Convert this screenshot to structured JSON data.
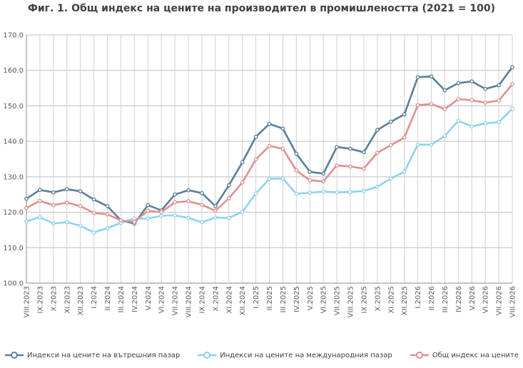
{
  "title": "Фиг. 1. Общ индекс на цените на производител в промишлеността (2021 = 100)",
  "chart_data": {
    "type": "line",
    "title": "Фиг. 1. Общ индекс на цените на производител в промишлеността (2021 = 100)",
    "xlabel": "",
    "ylabel": "",
    "ylim": [
      100,
      170
    ],
    "yticks": [
      "100.0",
      "110.0",
      "120.0",
      "130.0",
      "140.0",
      "150.0",
      "160.0",
      "170.0"
    ],
    "grid": true,
    "legend_position": "bottom",
    "categories": [
      "VIII.2023",
      "IX.2023",
      "X.2023",
      "XI.2023",
      "XII.2023",
      "I.2024",
      "II.2024",
      "III.2024",
      "IV.2024",
      "V.2024",
      "VI.2024",
      "VII.2024",
      "VIII.2024",
      "IX.2024",
      "X.2024",
      "XI.2024",
      "XII.2024",
      "I.2025",
      "II.2025",
      "III.2025",
      "IV.2025",
      "V.2025",
      "VI.2025",
      "VII.2025",
      "VIII.2025",
      "IX.2025",
      "X.2025",
      "XI.2025",
      "XII.2025",
      "I.2026",
      "II.2026",
      "III.2026",
      "IV.2026",
      "V.2026",
      "VI.2026",
      "VII.2026",
      "VIII.2026"
    ],
    "series": [
      {
        "name": "Индекси на цените на вътрешния пазар",
        "color": "#5b7f99",
        "values": [
          123.8,
          126.3,
          125.6,
          126.5,
          125.9,
          123.6,
          121.7,
          117.7,
          116.8,
          122.0,
          120.5,
          125.0,
          126.2,
          125.4,
          121.7,
          127.6,
          134.1,
          141.3,
          144.9,
          143.6,
          136.5,
          131.4,
          130.9,
          138.4,
          137.9,
          136.9,
          143.2,
          145.5,
          147.6,
          158.1,
          158.3,
          154.4,
          156.4,
          156.9,
          154.8,
          155.8,
          160.9
        ]
      },
      {
        "name": "Индекси на цените на международния пазар",
        "color": "#8fd3f0",
        "values": [
          117.4,
          118.6,
          116.8,
          117.2,
          116.2,
          114.3,
          115.5,
          117.0,
          118.2,
          118.2,
          119.0,
          119.1,
          118.4,
          117.2,
          118.5,
          118.4,
          120.1,
          125.3,
          129.4,
          129.5,
          125.2,
          125.5,
          125.8,
          125.6,
          125.7,
          126.0,
          127.2,
          129.5,
          131.4,
          139.1,
          139.0,
          141.5,
          145.8,
          144.2,
          145.1,
          145.4,
          149.2
        ]
      },
      {
        "name": "Общ индекс на цените",
        "color": "#e09090",
        "values": [
          121.2,
          123.2,
          122.0,
          122.7,
          121.7,
          119.8,
          119.4,
          117.7,
          117.3,
          120.4,
          120.0,
          122.8,
          123.1,
          122.1,
          120.4,
          123.9,
          128.4,
          134.9,
          138.7,
          137.9,
          131.8,
          129.0,
          128.7,
          133.2,
          132.9,
          132.3,
          136.8,
          138.9,
          141.1,
          150.2,
          150.5,
          149.1,
          151.9,
          151.6,
          150.9,
          151.5,
          156.1
        ]
      }
    ]
  }
}
